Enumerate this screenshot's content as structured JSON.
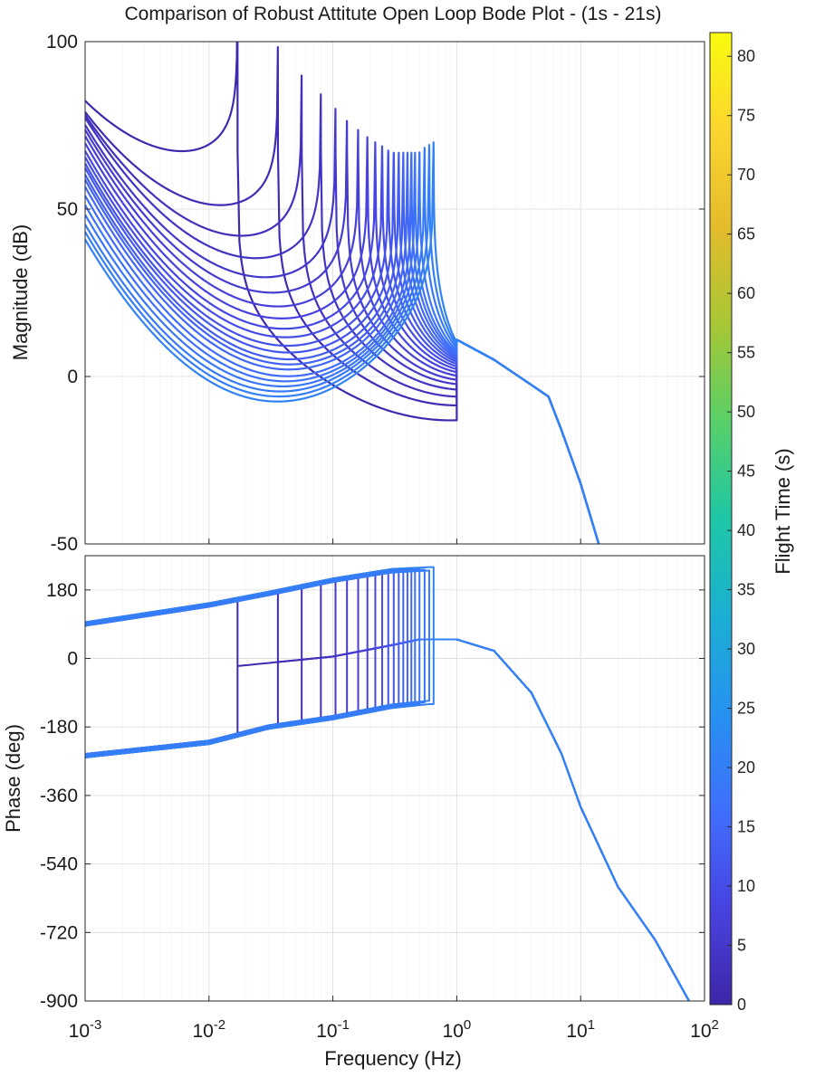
{
  "chart_data": {
    "type": "line",
    "title": "Comparison of Robust Attitute Open Loop Bode Plot - (1s - 21s)",
    "xlabel": "Frequency  (Hz)",
    "x_scale": "log",
    "xlim": [
      0.001,
      100
    ],
    "x_ticks": [
      {
        "value": 0.001,
        "base": "10",
        "exp": "-3"
      },
      {
        "value": 0.01,
        "base": "10",
        "exp": "-2"
      },
      {
        "value": 0.1,
        "base": "10",
        "exp": "-1"
      },
      {
        "value": 1,
        "base": "10",
        "exp": "0"
      },
      {
        "value": 10,
        "base": "10",
        "exp": "1"
      },
      {
        "value": 100,
        "base": "10",
        "exp": "2"
      }
    ],
    "grid": true,
    "magnitude": {
      "ylabel": "Magnitude (dB)",
      "ylim": [
        -50,
        100
      ],
      "y_ticks": [
        100,
        50,
        0,
        -50
      ],
      "curves": [
        {
          "flight_time": 1,
          "dip_freq": 0.008,
          "dip_db": 66,
          "resonance_freq": 0.017
        },
        {
          "flight_time": 2,
          "dip_freq": 0.016,
          "dip_db": 50,
          "resonance_freq": 0.036
        },
        {
          "flight_time": 3,
          "dip_freq": 0.023,
          "dip_db": 41,
          "resonance_freq": 0.056
        },
        {
          "flight_time": 4,
          "dip_freq": 0.029,
          "dip_db": 34.5,
          "resonance_freq": 0.08
        },
        {
          "flight_time": 5,
          "dip_freq": 0.033,
          "dip_db": 29,
          "resonance_freq": 0.105
        },
        {
          "flight_time": 6,
          "dip_freq": 0.037,
          "dip_db": 24.5,
          "resonance_freq": 0.13
        },
        {
          "flight_time": 7,
          "dip_freq": 0.04,
          "dip_db": 20.5,
          "resonance_freq": 0.16
        },
        {
          "flight_time": 8,
          "dip_freq": 0.042,
          "dip_db": 17,
          "resonance_freq": 0.19
        },
        {
          "flight_time": 9,
          "dip_freq": 0.043,
          "dip_db": 14,
          "resonance_freq": 0.22
        },
        {
          "flight_time": 10,
          "dip_freq": 0.044,
          "dip_db": 11.5,
          "resonance_freq": 0.25
        },
        {
          "flight_time": 11,
          "dip_freq": 0.045,
          "dip_db": 9,
          "resonance_freq": 0.28
        },
        {
          "flight_time": 12,
          "dip_freq": 0.046,
          "dip_db": 7,
          "resonance_freq": 0.31
        },
        {
          "flight_time": 13,
          "dip_freq": 0.046,
          "dip_db": 5,
          "resonance_freq": 0.34
        },
        {
          "flight_time": 14,
          "dip_freq": 0.046,
          "dip_db": 3.5,
          "resonance_freq": 0.37
        },
        {
          "flight_time": 15,
          "dip_freq": 0.045,
          "dip_db": 2,
          "resonance_freq": 0.4
        },
        {
          "flight_time": 16,
          "dip_freq": 0.044,
          "dip_db": 0,
          "resonance_freq": 0.43
        },
        {
          "flight_time": 17,
          "dip_freq": 0.042,
          "dip_db": -1.5,
          "resonance_freq": 0.46
        },
        {
          "flight_time": 18,
          "dip_freq": 0.04,
          "dip_db": -3,
          "resonance_freq": 0.5
        },
        {
          "flight_time": 19,
          "dip_freq": 0.038,
          "dip_db": -4.5,
          "resonance_freq": 0.55
        },
        {
          "flight_time": 20,
          "dip_freq": 0.037,
          "dip_db": -6,
          "resonance_freq": 0.6
        },
        {
          "flight_time": 21,
          "dip_freq": 0.036,
          "dip_db": -7.5,
          "resonance_freq": 0.65
        }
      ],
      "common_high_freq_path": [
        [
          1,
          11
        ],
        [
          2,
          5
        ],
        [
          4,
          -2.5
        ],
        [
          5.5,
          -6
        ],
        [
          7,
          -16
        ],
        [
          10,
          -32
        ],
        [
          14,
          -50
        ]
      ]
    },
    "phase": {
      "ylabel": "Phase (deg)",
      "ylim": [
        -900,
        270
      ],
      "y_ticks": [
        180,
        0,
        -180,
        -360,
        -540,
        -720,
        -900
      ],
      "upper_branch": [
        [
          0.001,
          95
        ],
        [
          0.01,
          145
        ],
        [
          0.03,
          175
        ],
        [
          0.1,
          210
        ],
        [
          0.3,
          235
        ],
        [
          0.6,
          240
        ]
      ],
      "lower_branch_after_jump": [
        [
          0.017,
          -20
        ],
        [
          0.1,
          5
        ],
        [
          0.3,
          35
        ],
        [
          0.5,
          50
        ],
        [
          1,
          50
        ]
      ],
      "initial_branch": [
        [
          0.001,
          -260
        ],
        [
          0.01,
          -225
        ],
        [
          0.03,
          -185
        ],
        [
          0.1,
          -160
        ],
        [
          0.3,
          -130
        ],
        [
          0.6,
          -120
        ]
      ],
      "high_freq_path": [
        [
          1,
          50
        ],
        [
          2,
          20
        ],
        [
          4,
          -90
        ],
        [
          7,
          -250
        ],
        [
          10,
          -390
        ],
        [
          20,
          -600
        ],
        [
          40,
          -740
        ],
        [
          75,
          -900
        ]
      ]
    },
    "colorbar": {
      "label": "Flight Time (s)",
      "range": [
        0,
        82
      ],
      "ticks": [
        0,
        5,
        10,
        15,
        20,
        25,
        30,
        35,
        40,
        45,
        50,
        55,
        60,
        65,
        70,
        75,
        80
      ],
      "colormap": "parula",
      "colormap_stops": [
        "#3e26a8",
        "#4743e0",
        "#3f6ffb",
        "#2692f1",
        "#1bafd3",
        "#1fc6a6",
        "#58d068",
        "#a7c734",
        "#e4bb2c",
        "#fcd52f",
        "#f9fb0e"
      ]
    }
  }
}
